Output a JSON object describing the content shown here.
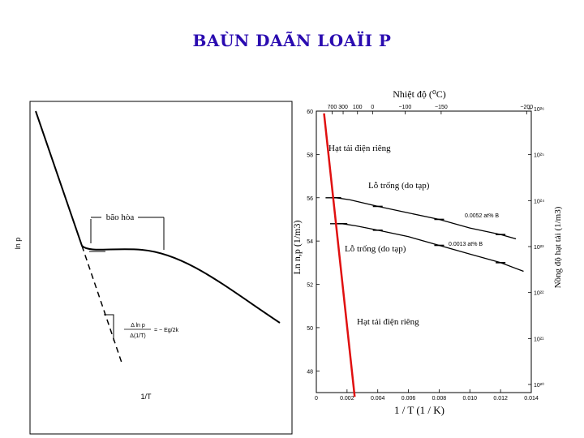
{
  "title": "BAÙN DAÃN LOAÏI P",
  "chart_data": [
    {
      "type": "line",
      "ylabel": "ln p",
      "xlabel": "1/T",
      "annotations": {
        "saturation": "bão hòa",
        "slope_top": "Δ ln p",
        "slope_bottom": "Δ(1/T)",
        "slope_value": "= − Eg/2k"
      }
    },
    {
      "type": "line",
      "top_axis_label": "Nhiệt độ (⁰C)",
      "top_ticks": [
        "700",
        "300",
        "100",
        "0",
        "−100",
        "−150",
        "−200"
      ],
      "top_tick_values": [
        700,
        300,
        100,
        0,
        -100,
        -150,
        -200
      ],
      "xlabel": "1 / T   (1 / K)",
      "ylabel_left": "Ln n,p (1/m3)",
      "ylabel_right": "Nồng độ hạt tải (1/m3)",
      "x_ticks": [
        "0",
        "0.002",
        "0.004",
        "0.006",
        "0.008",
        "0.010",
        "0.012",
        "0.014"
      ],
      "xlim": [
        0,
        0.014
      ],
      "y_ticks": [
        "48",
        "50",
        "52",
        "54",
        "56",
        "58",
        "60"
      ],
      "ylim": [
        47,
        60
      ],
      "right_ticks": [
        "10²⁰",
        "10²¹",
        "10²²",
        "10²³",
        "10²⁴",
        "10²⁵",
        "10²⁶"
      ],
      "series": [
        {
          "name": "0.0052 at% B",
          "x": [
            0.0006,
            0.0013,
            0.0022,
            0.004,
            0.006,
            0.008,
            0.01,
            0.012,
            0.013
          ],
          "y": [
            56.0,
            56.0,
            55.9,
            55.6,
            55.3,
            55.0,
            54.6,
            54.3,
            54.1
          ]
        },
        {
          "name": "0.0013 at% B",
          "x": [
            0.0009,
            0.0017,
            0.0026,
            0.004,
            0.006,
            0.008,
            0.01,
            0.012,
            0.0135
          ],
          "y": [
            54.8,
            54.8,
            54.7,
            54.5,
            54.2,
            53.8,
            53.4,
            53.0,
            52.6
          ]
        },
        {
          "name": "",
          "x": [
            0.0005,
            0.0025
          ],
          "y": [
            59.9,
            46.8
          ]
        }
      ],
      "annotations": {
        "intrinsic_top": "Hạt tải điện riêng",
        "hole_top": "Lỗ trống (do tạp)",
        "hole_bottom": "Lỗ trống (do tạp)",
        "intrinsic_bottom": "Hạt tải điện riêng",
        "series_label_1": "0.0052 at% B",
        "series_label_2": "0.0013 at% B"
      }
    }
  ]
}
